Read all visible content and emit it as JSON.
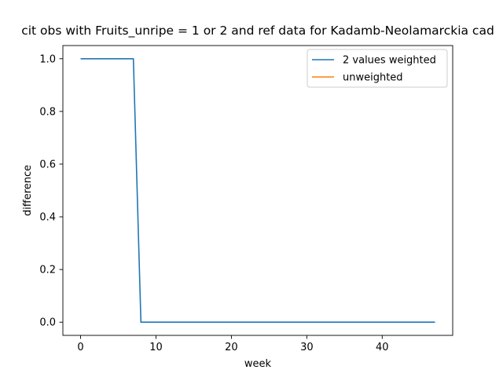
{
  "chart_data": {
    "type": "line",
    "title": "cit obs with Fruits_unripe = 1 or 2 and ref data for Kadamb-Neolamarckia cad",
    "xlabel": "week",
    "ylabel": "difference",
    "xlim": [
      -2.35,
      49.35
    ],
    "ylim": [
      -0.05,
      1.05
    ],
    "xticks": [
      0,
      10,
      20,
      30,
      40
    ],
    "yticks": [
      0.0,
      0.2,
      0.4,
      0.6,
      0.8,
      1.0
    ],
    "xtick_labels": [
      "0",
      "10",
      "20",
      "30",
      "40"
    ],
    "ytick_labels": [
      "0.0",
      "0.2",
      "0.4",
      "0.6",
      "0.8",
      "1.0"
    ],
    "grid": false,
    "legend_position": "upper right",
    "series": [
      {
        "name": "2 values weighted",
        "color": "#1f77b4",
        "x": [
          0,
          1,
          2,
          3,
          4,
          5,
          6,
          7,
          8,
          9,
          10,
          11,
          12,
          13,
          14,
          15,
          16,
          17,
          18,
          19,
          20,
          21,
          22,
          23,
          24,
          25,
          26,
          27,
          28,
          29,
          30,
          31,
          32,
          33,
          34,
          35,
          36,
          37,
          38,
          39,
          40,
          41,
          42,
          43,
          44,
          45,
          46,
          47
        ],
        "y": [
          1,
          1,
          1,
          1,
          1,
          1,
          1,
          1,
          0,
          0,
          0,
          0,
          0,
          0,
          0,
          0,
          0,
          0,
          0,
          0,
          0,
          0,
          0,
          0,
          0,
          0,
          0,
          0,
          0,
          0,
          0,
          0,
          0,
          0,
          0,
          0,
          0,
          0,
          0,
          0,
          0,
          0,
          0,
          0,
          0,
          0,
          0,
          0
        ]
      },
      {
        "name": "unweighted",
        "color": "#ff7f0e",
        "x": [],
        "y": []
      }
    ]
  }
}
